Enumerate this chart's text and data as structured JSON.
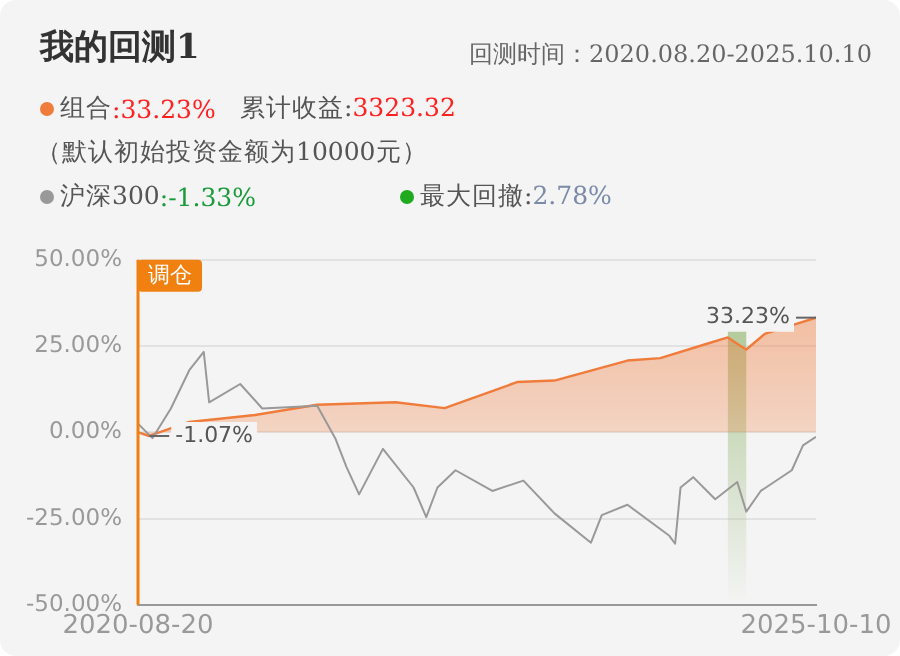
{
  "chart_data": {
    "type": "line",
    "title": "我的回测1",
    "subtitle": "回测时间：2020.08.20-2025.10.10",
    "xlim": [
      "2020-08-20",
      "2025-10-10"
    ],
    "xticks": [
      "2020-08-20",
      "2025-10-10"
    ],
    "ylim": [
      -50,
      50
    ],
    "yticks": [
      {
        "value": -50,
        "label": "-50.00%"
      },
      {
        "value": -25,
        "label": "-25.00%"
      },
      {
        "value": 0,
        "label": "0.00%"
      },
      {
        "value": 25,
        "label": "25.00%"
      },
      {
        "value": 50,
        "label": "50.00%"
      }
    ],
    "grid": "y",
    "legend": "top left",
    "series": [
      {
        "name": "组合",
        "type": "area",
        "color": "#f07c3c",
        "x": [
          "2020-08-20",
          "2020-09-20",
          "2021-01-09",
          "2021-07-10",
          "2021-12-29",
          "2022-08-03",
          "2022-12-17",
          "2023-07-07",
          "2023-10-17",
          "2024-05-06",
          "2024-08-05",
          "2024-12-10",
          "2025-02-08",
          "2025-03-11",
          "2025-03-31",
          "2025-05-21",
          "2025-10-10"
        ],
        "values": [
          0,
          -1.07,
          3,
          5,
          8,
          8.7,
          7,
          14.6,
          15,
          20.8,
          21.5,
          25.6,
          27.5,
          25.3,
          24,
          28.5,
          33.23
        ]
      },
      {
        "name": "沪深300",
        "type": "line",
        "color": "#999999",
        "x": [
          "2020-08-20",
          "2020-09-29",
          "2020-11-19",
          "2021-01-09",
          "2021-02-18",
          "2021-03-05",
          "2021-05-30",
          "2021-07-30",
          "2021-12-29",
          "2022-02-17",
          "2022-03-20",
          "2022-04-24",
          "2022-06-29",
          "2022-09-22",
          "2022-10-27",
          "2022-11-27",
          "2023-01-16",
          "2023-04-28",
          "2023-07-23",
          "2023-10-17",
          "2024-01-26",
          "2024-02-25",
          "2024-05-06",
          "2024-08-30",
          "2024-09-15",
          "2024-09-30",
          "2024-11-04",
          "2025-01-04",
          "2025-03-06",
          "2025-03-31",
          "2025-05-10",
          "2025-08-04",
          "2025-09-04",
          "2025-10-10"
        ],
        "values": [
          2.5,
          -1.7,
          6.9,
          18,
          23.3,
          8.7,
          14,
          6.9,
          7.7,
          -1.7,
          -10,
          -18,
          -4.8,
          -16,
          -24.6,
          -16,
          -11,
          -17,
          -14,
          -23.5,
          -32,
          -24,
          -21,
          -30,
          -32.3,
          -16,
          -13,
          -19.4,
          -14.4,
          -23,
          -17,
          -11,
          -3.8,
          -1.33
        ]
      }
    ],
    "bands": [
      {
        "axis": "x",
        "from": "2025-02-08",
        "to": "2025-03-31",
        "color": "#8fb36b"
      }
    ],
    "annotations": [
      ":33.23%",
      "累计收益:3323.32",
      "（默认初始投资金额为10000元）",
      ":-1.33%",
      "最大回撤:2.78%",
      "调仓",
      {
        "text": "-1.07%",
        "x": "2020-09-20",
        "y": -1.07
      },
      {
        "text": "33.23%",
        "x": "2025-10-10",
        "y": 33.23
      }
    ]
  }
}
